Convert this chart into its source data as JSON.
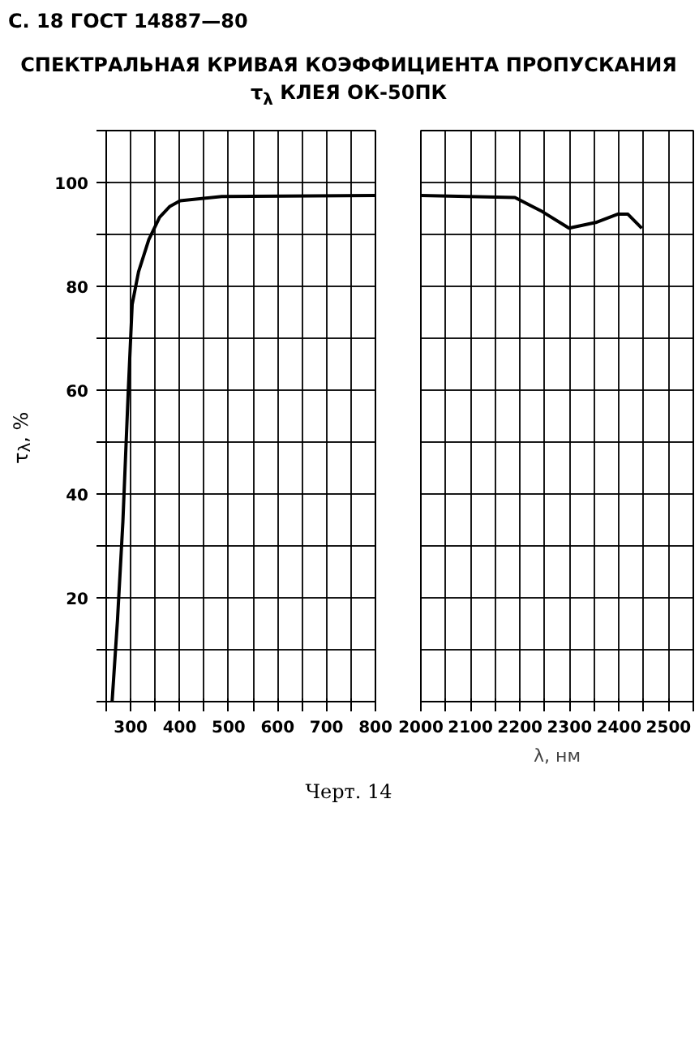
{
  "chart_data": [
    {
      "type": "line",
      "title": "СПЕКТРАЛЬНАЯ КРИВАЯ КОЭФФИЦИЕНТА ПРОПУСКАНИЯ τ$_{λ}$ КЛЕЯ ОК-50ПК",
      "ylabel": "τ$_{λ}$, %",
      "annotations": [
        "С. 18 ГОСТ 14887—80"
      ],
      "xlim": [
        250,
        800
      ],
      "xticks": [
        {
          "value": 250,
          "label": null
        },
        300,
        {
          "value": 350,
          "label": null
        },
        400,
        {
          "value": 450,
          "label": null
        },
        500,
        {
          "value": 550,
          "label": null
        },
        600,
        {
          "value": 650,
          "label": null
        },
        700,
        {
          "value": 750,
          "label": null
        },
        800
      ],
      "ylim": [
        0,
        110
      ],
      "yticks": [
        {
          "value": 0,
          "label": null
        },
        {
          "value": 10,
          "label": null
        },
        20,
        {
          "value": 30,
          "label": null
        },
        40,
        {
          "value": 50,
          "label": null
        },
        60,
        {
          "value": 70,
          "label": null
        },
        80,
        {
          "value": 90,
          "label": null
        },
        100,
        {
          "value": 110,
          "label": null
        }
      ],
      "grid": true,
      "series": [
        {
          "color": "#000000",
          "x": [
            262,
            273,
            284,
            295,
            303,
            316,
            337,
            359,
            380,
            401,
            486,
            800
          ],
          "values": [
            0,
            15.7,
            34.6,
            59.8,
            76.5,
            82.8,
            89,
            93.3,
            95.4,
            96.5,
            97.3,
            97.5
          ]
        }
      ]
    },
    {
      "type": "line",
      "xlabel": "λ, нм",
      "tick_labels": "x",
      "annotations": [
        "Черт. 14"
      ],
      "xlim": [
        2000,
        2550
      ],
      "xticks": [
        2000,
        {
          "value": 2050,
          "label": null
        },
        2100,
        {
          "value": 2150,
          "label": null
        },
        2200,
        {
          "value": 2250,
          "label": null
        },
        2300,
        {
          "value": 2350,
          "label": null
        },
        2400,
        {
          "value": 2450,
          "label": null
        },
        2500,
        {
          "value": 2550,
          "label": null
        }
      ],
      "ylim": [
        0,
        110
      ],
      "yticks": [
        {
          "value": 0,
          "label": null
        },
        {
          "value": 10,
          "label": null
        },
        20,
        {
          "value": 30,
          "label": null
        },
        40,
        {
          "value": 50,
          "label": null
        },
        60,
        {
          "value": 70,
          "label": null
        },
        80,
        {
          "value": 90,
          "label": null
        },
        100,
        {
          "value": 110,
          "label": null
        }
      ],
      "grid": true,
      "series": [
        {
          "color": "#000000",
          "x": [
            2000,
            2190,
            2245,
            2299,
            2353,
            2397,
            2418,
            2446
          ],
          "values": [
            97.5,
            97.1,
            94.4,
            91.2,
            92.3,
            93.9,
            93.9,
            91.2
          ]
        }
      ]
    }
  ]
}
